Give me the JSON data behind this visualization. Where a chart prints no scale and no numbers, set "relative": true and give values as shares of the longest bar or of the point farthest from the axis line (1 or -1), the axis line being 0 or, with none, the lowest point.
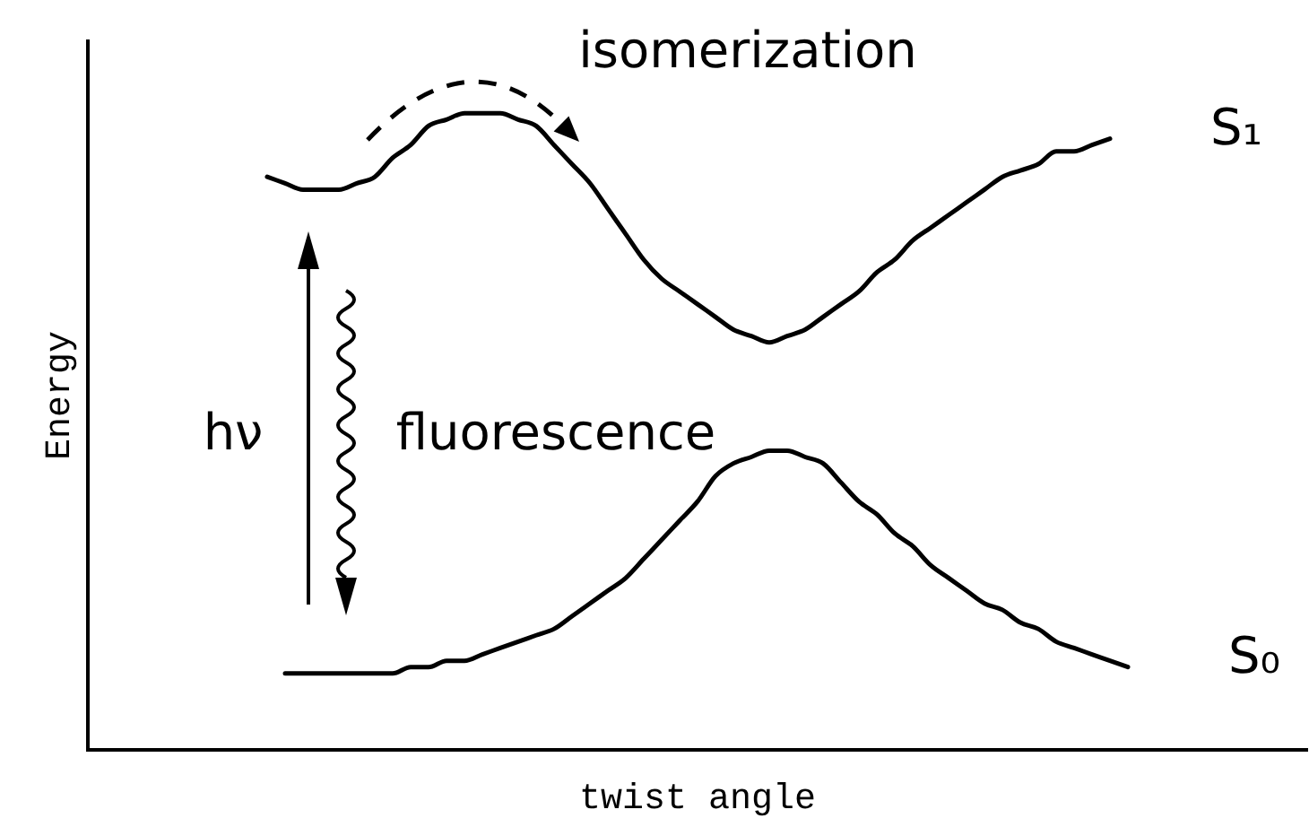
{
  "chart_data": {
    "type": "line",
    "xlabel": "twist angle",
    "ylabel": "Energy",
    "relative": true,
    "categories": [
      null,
      null,
      null,
      null,
      null,
      null,
      null,
      null,
      null,
      null,
      null,
      null,
      null,
      null,
      null,
      null,
      null,
      null,
      null,
      null,
      null,
      null,
      null,
      null,
      null,
      null,
      null,
      null,
      null,
      null,
      null,
      null,
      null,
      null,
      null,
      null,
      null,
      null,
      null,
      null,
      null,
      null,
      null,
      null,
      null,
      null,
      null,
      null,
      null,
      null,
      null,
      null,
      null,
      null,
      null,
      null,
      null,
      null,
      null,
      null,
      null,
      null,
      null,
      null,
      null,
      null,
      null,
      null,
      null
    ],
    "series": [
      {
        "name": "S₁",
        "color": "#000000",
        "values": [
          null,
          null,
          null,
          null,
          null,
          null,
          null,
          null,
          null,
          null,
          0.9,
          0.89,
          0.88,
          0.88,
          0.88,
          0.89,
          0.9,
          0.93,
          0.95,
          0.98,
          0.99,
          1.0,
          1.0,
          1.0,
          0.99,
          0.98,
          0.95,
          0.92,
          0.89,
          0.85,
          0.81,
          0.77,
          0.74,
          0.72,
          0.7,
          0.68,
          0.66,
          0.65,
          0.64,
          0.65,
          0.66,
          0.68,
          0.7,
          0.72,
          0.75,
          0.77,
          0.8,
          0.82,
          0.84,
          0.86,
          0.88,
          0.9,
          0.91,
          0.92,
          0.94,
          0.94,
          0.95,
          0.96,
          null,
          null,
          null,
          null,
          null,
          null,
          null,
          null,
          null,
          null,
          null
        ]
      },
      {
        "name": "S₀",
        "color": "#000000",
        "values": [
          null,
          null,
          null,
          null,
          null,
          null,
          null,
          null,
          null,
          null,
          null,
          0.12,
          0.12,
          0.12,
          0.12,
          0.12,
          0.12,
          0.12,
          0.13,
          0.13,
          0.14,
          0.14,
          0.15,
          0.16,
          0.17,
          0.18,
          0.19,
          0.21,
          0.23,
          0.25,
          0.27,
          0.3,
          0.33,
          0.36,
          0.39,
          0.43,
          0.45,
          0.46,
          0.47,
          0.47,
          0.46,
          0.45,
          0.42,
          0.39,
          0.37,
          0.34,
          0.32,
          0.29,
          0.27,
          0.25,
          0.23,
          0.22,
          0.2,
          0.19,
          0.17,
          0.16,
          0.15,
          0.14,
          0.13,
          null,
          null,
          null,
          null,
          null,
          null,
          null,
          null,
          null,
          null
        ]
      }
    ],
    "annotations": [
      "isomerization",
      "hν",
      "fluorescence"
    ]
  }
}
